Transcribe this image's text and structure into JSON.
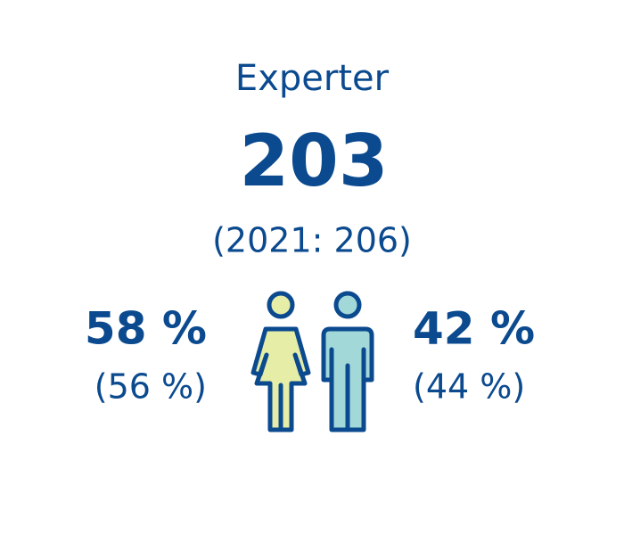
{
  "header": {
    "title": "Experter"
  },
  "total": {
    "value": "203",
    "previous": "(2021: 206)"
  },
  "women": {
    "share": "58 %",
    "previous": "(56 %)"
  },
  "men": {
    "share": "42 %",
    "previous": "(44 %)"
  }
}
